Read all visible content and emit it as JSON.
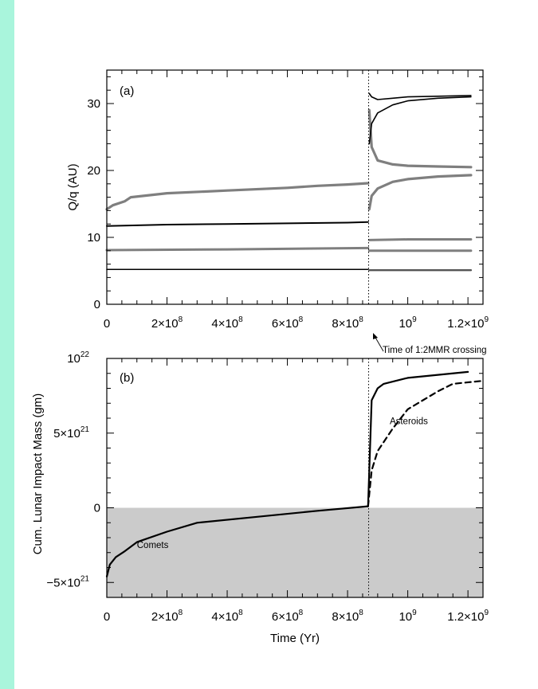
{
  "chart_data": [
    {
      "type": "scatter",
      "panel_label": "(a)",
      "ylabel": "Q/q (AU)",
      "xlim": [
        0,
        1250000000
      ],
      "ylim": [
        0,
        35
      ],
      "grid": false,
      "x_ticks": [
        {
          "value": 0,
          "mantissa": "0",
          "exp": ""
        },
        {
          "value": 200000000,
          "mantissa": "2×10",
          "exp": "8"
        },
        {
          "value": 400000000,
          "mantissa": "4×10",
          "exp": "8"
        },
        {
          "value": 600000000,
          "mantissa": "6×10",
          "exp": "8"
        },
        {
          "value": 800000000,
          "mantissa": "8×10",
          "exp": "8"
        },
        {
          "value": 1000000000,
          "mantissa": "10",
          "exp": "9"
        },
        {
          "value": 1200000000,
          "mantissa": "1.2×10",
          "exp": "9"
        }
      ],
      "y_ticks": [
        {
          "value": 0,
          "label": "0"
        },
        {
          "value": 10,
          "label": "10"
        },
        {
          "value": 20,
          "label": "20"
        },
        {
          "value": 30,
          "label": "30"
        }
      ],
      "vline": {
        "x": 870000000,
        "label": "Time of 1:2MMR crossing"
      },
      "series": [
        {
          "color": "#7f7f7f",
          "width": 3.2,
          "x": [
            0,
            20000000,
            60000000,
            80000000,
            200000000,
            400000000,
            600000000,
            700000000,
            800000000,
            868000000
          ],
          "y": [
            14.2,
            14.8,
            15.4,
            16.0,
            16.6,
            17.0,
            17.4,
            17.7,
            17.9,
            18.1
          ]
        },
        {
          "color": "#7f7f7f",
          "width": 3.2,
          "x": [
            872000000,
            880000000,
            900000000,
            950000000,
            1000000000,
            1100000000,
            1210000000
          ],
          "y": [
            29.0,
            23.5,
            21.5,
            20.9,
            20.7,
            20.6,
            20.5
          ]
        },
        {
          "color": "#7f7f7f",
          "width": 3.2,
          "x": [
            872000000,
            880000000,
            900000000,
            950000000,
            1000000000,
            1100000000,
            1210000000
          ],
          "y": [
            14.2,
            16.2,
            17.3,
            18.3,
            18.7,
            19.1,
            19.3
          ]
        },
        {
          "color": "#000000",
          "width": 2.0,
          "x": [
            0,
            200000000,
            400000000,
            600000000,
            800000000,
            868000000
          ],
          "y": [
            11.7,
            11.9,
            12.0,
            12.1,
            12.2,
            12.3
          ]
        },
        {
          "color": "#000000",
          "width": 1.6,
          "x": [
            872000000,
            880000000,
            900000000,
            950000000,
            1000000000,
            1100000000,
            1210000000
          ],
          "y": [
            31.5,
            31.0,
            30.6,
            30.8,
            31.0,
            31.1,
            31.2
          ]
        },
        {
          "color": "#000000",
          "width": 1.6,
          "x": [
            872000000,
            880000000,
            900000000,
            950000000,
            1000000000,
            1100000000,
            1210000000
          ],
          "y": [
            24.0,
            27.0,
            28.6,
            29.8,
            30.4,
            30.8,
            31.0
          ]
        },
        {
          "color": "#7f7f7f",
          "width": 3.0,
          "x": [
            0,
            400000000,
            868000000
          ],
          "y": [
            8.1,
            8.2,
            8.4
          ]
        },
        {
          "color": "#7f7f7f",
          "width": 3.0,
          "x": [
            872000000,
            1000000000,
            1210000000
          ],
          "y": [
            9.6,
            9.7,
            9.7
          ]
        },
        {
          "color": "#7f7f7f",
          "width": 3.0,
          "x": [
            872000000,
            1000000000,
            1210000000
          ],
          "y": [
            8.0,
            8.0,
            8.0
          ]
        },
        {
          "color": "#000000",
          "width": 1.5,
          "x": [
            0,
            868000000
          ],
          "y": [
            5.2,
            5.2
          ]
        },
        {
          "color": "#555555",
          "width": 2.4,
          "x": [
            872000000,
            1210000000
          ],
          "y": [
            5.1,
            5.1
          ]
        }
      ]
    },
    {
      "type": "line",
      "panel_label": "(b)",
      "xlabel": "Time (Yr)",
      "ylabel": "Cum. Lunar Impact Mass (gm)",
      "xlim": [
        0,
        1250000000
      ],
      "ylim": [
        -6000000000000000000000,
        10000000000000000000000
      ],
      "grid": false,
      "shaded_below": 0,
      "shade_color": "#cbcbcb",
      "x_ticks": [
        {
          "value": 0,
          "mantissa": "0",
          "exp": ""
        },
        {
          "value": 200000000,
          "mantissa": "2×10",
          "exp": "8"
        },
        {
          "value": 400000000,
          "mantissa": "4×10",
          "exp": "8"
        },
        {
          "value": 600000000,
          "mantissa": "6×10",
          "exp": "8"
        },
        {
          "value": 800000000,
          "mantissa": "8×10",
          "exp": "8"
        },
        {
          "value": 1000000000,
          "mantissa": "10",
          "exp": "9"
        },
        {
          "value": 1200000000,
          "mantissa": "1.2×10",
          "exp": "9"
        }
      ],
      "y_ticks": [
        {
          "value": -5000000000000000000000,
          "mantissa": "−5×10",
          "exp": "21"
        },
        {
          "value": 0,
          "mantissa": "0",
          "exp": ""
        },
        {
          "value": 5000000000000000000000,
          "mantissa": "5×10",
          "exp": "21"
        },
        {
          "value": 10000000000000000000000,
          "mantissa": "10",
          "exp": "22"
        }
      ],
      "vline": {
        "x": 870000000
      },
      "annotations": [
        {
          "text": "Comets",
          "x": 100000000,
          "y": -2700000000000000000000
        },
        {
          "text": "Asteroids",
          "x": 940000000,
          "y": 5600000000000000000000
        }
      ],
      "series": [
        {
          "name": "Comets",
          "color": "#000000",
          "dash": "",
          "x": [
            0,
            10000000,
            30000000,
            60000000,
            100000000,
            200000000,
            300000000,
            500000000,
            700000000,
            868000000
          ],
          "y": [
            -4600000000000000000000,
            -3800000000000000000000,
            -3300000000000000000000,
            -2900000000000000000000,
            -2300000000000000000000,
            -1600000000000000000000,
            -1000000000000000000000,
            -600000000000000000000,
            -200000000000000000000,
            100000000000000000000
          ]
        },
        {
          "name": "",
          "color": "#000000",
          "dash": "",
          "x": [
            868000000,
            880000000,
            900000000,
            920000000,
            1000000000,
            1200000000
          ],
          "y": [
            100000000000000000000,
            7200000000000000000000,
            8000000000000000000000,
            8300000000000000000000,
            8700000000000000000000,
            9100000000000000000000
          ]
        },
        {
          "name": "Asteroids",
          "color": "#000000",
          "dash": "7,5",
          "x": [
            868000000,
            880000000,
            900000000,
            950000000,
            1000000000,
            1100000000,
            1150000000,
            1250000000
          ],
          "y": [
            100000000000000000000,
            2500000000000000000000,
            3800000000000000000000,
            5300000000000000000000,
            6600000000000000000000,
            7800000000000000000000,
            8300000000000000000000,
            8500000000000000000000
          ]
        }
      ]
    }
  ]
}
